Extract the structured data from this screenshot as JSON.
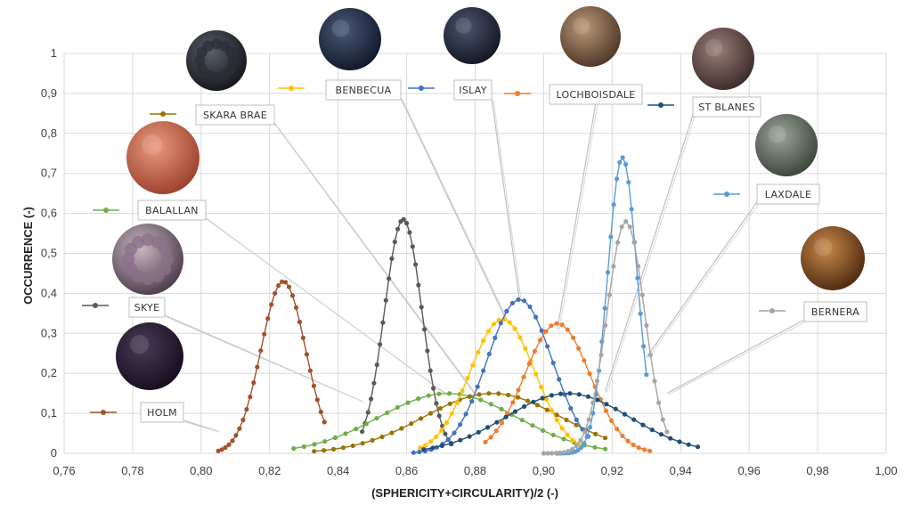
{
  "chart_data": {
    "type": "line",
    "xlabel": "(SPHERICITY+CIRCULARITY)/2 (-)",
    "ylabel": "OCCURRENCE (-)",
    "xlim": [
      0.76,
      1.0
    ],
    "ylim": [
      0,
      1
    ],
    "x_ticks": [
      "0,76",
      "0,78",
      "0,80",
      "0,82",
      "0,84",
      "0,86",
      "0,88",
      "0,90",
      "0,92",
      "0,94",
      "0,96",
      "0,98",
      "1,00"
    ],
    "y_ticks": [
      "0",
      "0,1",
      "0,2",
      "0,3",
      "0,4",
      "0,5",
      "0,6",
      "0,7",
      "0,8",
      "0,9",
      "1"
    ],
    "grid": true,
    "series": [
      {
        "name": "HOLM",
        "color": "#a0522d",
        "center": 0.824,
        "peak": 0.43,
        "sigma": 0.0065,
        "x_range": [
          0.805,
          0.836
        ],
        "label_anchor": [
          0.805,
          0.055
        ]
      },
      {
        "name": "SKYE",
        "color": "#595959",
        "center": 0.859,
        "peak": 0.585,
        "sigma": 0.0055,
        "x_range": [
          0.847,
          0.873
        ],
        "label_anchor": [
          0.847,
          0.13
        ]
      },
      {
        "name": "BALALLAN",
        "color": "#70ad47",
        "center": 0.872,
        "peak": 0.15,
        "sigma": 0.02,
        "x_range": [
          0.827,
          0.918
        ],
        "label_anchor": [
          0.872,
          0.145
        ]
      },
      {
        "name": "SKARA BRAE",
        "color": "#997300",
        "center": 0.885,
        "peak": 0.15,
        "sigma": 0.02,
        "x_range": [
          0.833,
          0.918
        ],
        "label_anchor": [
          0.88,
          0.148
        ]
      },
      {
        "name": "BENBECUA",
        "color": "#ffc000",
        "center": 0.888,
        "peak": 0.335,
        "sigma": 0.0095,
        "x_range": [
          0.864,
          0.91
        ],
        "label_anchor": [
          0.889,
          0.335
        ]
      },
      {
        "name": "ISLAY",
        "color": "#4472c4",
        "center": 0.893,
        "peak": 0.385,
        "sigma": 0.0095,
        "x_range": [
          0.862,
          0.913
        ],
        "label_anchor": [
          0.893,
          0.38
        ]
      },
      {
        "name": "LOCHBOISDALE",
        "color": "#ed7d31",
        "center": 0.904,
        "peak": 0.325,
        "sigma": 0.0095,
        "x_range": [
          0.883,
          0.931
        ],
        "label_anchor": [
          0.904,
          0.31
        ]
      },
      {
        "name": "ST BLANES",
        "color": "#1f4e79",
        "center": 0.907,
        "peak": 0.15,
        "sigma": 0.018,
        "x_range": [
          0.865,
          0.945
        ],
        "label_anchor": [
          0.918,
          0.155
        ]
      },
      {
        "name": "LAXDALE",
        "color": "#5b9bd5",
        "center": 0.923,
        "peak": 0.74,
        "sigma": 0.0043,
        "x_range": [
          0.904,
          0.93
        ],
        "label_anchor": [
          0.93,
          0.24
        ]
      },
      {
        "name": "BERNERA",
        "color": "#a5a5a5",
        "center": 0.924,
        "peak": 0.58,
        "sigma": 0.0055,
        "x_range": [
          0.9,
          0.936
        ],
        "label_anchor": [
          0.936,
          0.15
        ]
      }
    ]
  }
}
